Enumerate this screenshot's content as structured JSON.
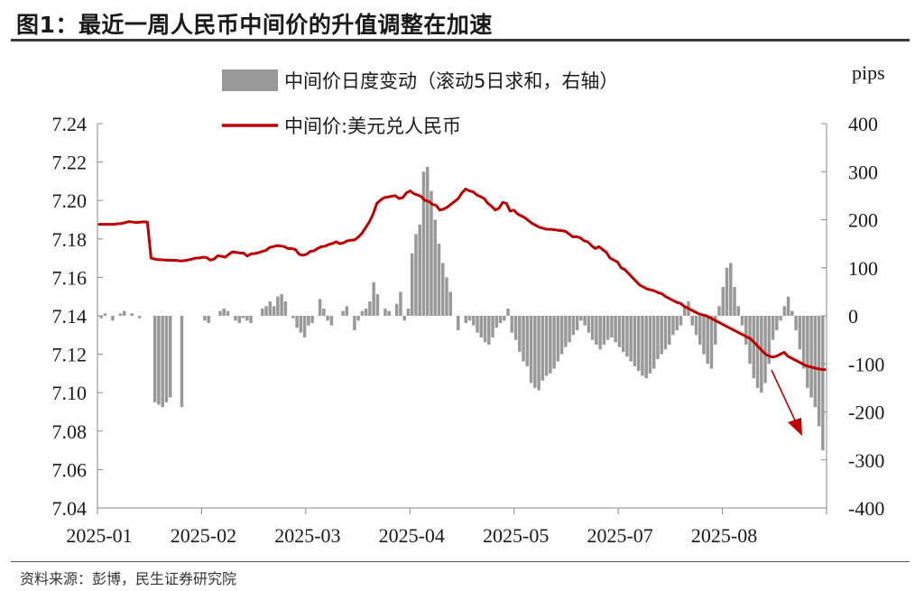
{
  "figure": {
    "title": "图1：最近一周人民币中间价的升值调整在加速",
    "source": "资料来源：彭博，民生证券研究院"
  },
  "chart_data": {
    "type": "bar+line",
    "right_axis_unit": "pips",
    "left_ylim": [
      7.04,
      7.24
    ],
    "left_yticks": [
      "7.24",
      "7.22",
      "7.20",
      "7.18",
      "7.16",
      "7.14",
      "7.12",
      "7.10",
      "7.08",
      "7.06",
      "7.04"
    ],
    "right_ylim": [
      -400,
      400
    ],
    "right_yticks": [
      "400",
      "300",
      "200",
      "100",
      "0",
      "-100",
      "-200",
      "-300",
      "-400"
    ],
    "xticks": [
      "2025-01",
      "2025-02",
      "2025-03",
      "2025-04",
      "2025-05",
      "2025-07",
      "2025-08"
    ],
    "legend_position": "top-center",
    "colors": {
      "bar": "#999999",
      "line": "#c00000",
      "arrow": "#c00000",
      "axis": "#888888"
    },
    "series": [
      {
        "name": "中间价日度变动（滚动5日求和，右轴）",
        "type": "bar",
        "axis": "right",
        "values": [
          -5,
          5,
          0,
          -10,
          0,
          5,
          10,
          0,
          5,
          0,
          -5,
          0,
          0,
          0,
          -180,
          -185,
          -190,
          -180,
          -170,
          0,
          0,
          -190,
          0,
          0,
          0,
          0,
          0,
          -10,
          -15,
          0,
          0,
          10,
          15,
          10,
          0,
          -10,
          -15,
          -5,
          -10,
          -15,
          0,
          0,
          15,
          20,
          30,
          20,
          40,
          45,
          30,
          0,
          -5,
          -25,
          -35,
          -45,
          -20,
          -15,
          0,
          35,
          15,
          -10,
          -20,
          0,
          0,
          10,
          20,
          0,
          -30,
          -10,
          10,
          15,
          30,
          70,
          45,
          0,
          15,
          10,
          0,
          25,
          50,
          -10,
          15,
          130,
          170,
          190,
          300,
          310,
          260,
          200,
          150,
          110,
          80,
          50,
          0,
          -30,
          0,
          -15,
          -10,
          -20,
          -35,
          -45,
          -55,
          -60,
          -45,
          -25,
          -15,
          -10,
          15,
          -35,
          -50,
          -75,
          -95,
          -105,
          -140,
          -150,
          -155,
          -135,
          -125,
          -120,
          -110,
          -95,
          -80,
          -65,
          -55,
          -40,
          -30,
          -10,
          -20,
          -35,
          -50,
          -60,
          -70,
          -60,
          -50,
          -45,
          -55,
          -65,
          -75,
          -85,
          -95,
          -105,
          -115,
          -125,
          -130,
          -120,
          -110,
          -90,
          -80,
          -70,
          -60,
          -40,
          -30,
          -20,
          20,
          30,
          -20,
          -40,
          -60,
          -80,
          -100,
          -110,
          -60,
          20,
          60,
          100,
          110,
          60,
          20,
          -20,
          -60,
          -100,
          -130,
          -150,
          -160,
          -140,
          -100,
          -50,
          -30,
          -10,
          20,
          40,
          10,
          -30,
          -70,
          -110,
          -150,
          -170,
          -190,
          -230,
          -280
        ]
      },
      {
        "name": "中间价:美元兑人民币",
        "type": "line",
        "axis": "left",
        "values": [
          7.1876,
          7.1876,
          7.1876,
          7.1876,
          7.1876,
          7.1879,
          7.188,
          7.1885,
          7.189,
          7.1888,
          7.1885,
          7.1887,
          7.1889,
          7.1888,
          7.17,
          7.1695,
          7.1692,
          7.1691,
          7.169,
          7.1689,
          7.1689,
          7.1688,
          7.1685,
          7.1687,
          7.169,
          7.1695,
          7.17,
          7.1701,
          7.1705,
          7.1703,
          7.169,
          7.1695,
          7.1712,
          7.171,
          7.1705,
          7.172,
          7.1733,
          7.173,
          7.1727,
          7.1726,
          7.1711,
          7.1722,
          7.1724,
          7.1728,
          7.1735,
          7.174,
          7.1755,
          7.176,
          7.1765,
          7.1763,
          7.176,
          7.175,
          7.175,
          7.1745,
          7.172,
          7.1715,
          7.172,
          7.1735,
          7.1738,
          7.175,
          7.176,
          7.1762,
          7.1771,
          7.1776,
          7.1785,
          7.1775,
          7.178,
          7.179,
          7.1793,
          7.1795,
          7.181,
          7.183,
          7.186,
          7.189,
          7.193,
          7.1985,
          7.2002,
          7.2015,
          7.2018,
          7.2022,
          7.2025,
          7.201,
          7.2015,
          7.204,
          7.205,
          7.2035,
          7.2029,
          7.202,
          7.2,
          7.1996,
          7.198,
          7.1975,
          7.195,
          7.1955,
          7.1965,
          7.198,
          7.1995,
          7.201,
          7.204,
          7.206,
          7.205,
          7.2045,
          7.2029,
          7.202,
          7.201,
          7.1985,
          7.197,
          7.195,
          7.196,
          7.199,
          7.1985,
          7.1945,
          7.195,
          7.193,
          7.192,
          7.191,
          7.1895,
          7.188,
          7.187,
          7.186,
          7.1855,
          7.185,
          7.185,
          7.1848,
          7.1845,
          7.1843,
          7.1839,
          7.1825,
          7.181,
          7.1812,
          7.1805,
          7.179,
          7.1785,
          7.1765,
          7.175,
          7.176,
          7.1745,
          7.173,
          7.17,
          7.169,
          7.168,
          7.165,
          7.164,
          7.162,
          7.16,
          7.158,
          7.156,
          7.155,
          7.154,
          7.1535,
          7.153,
          7.152,
          7.1515,
          7.15,
          7.149,
          7.148,
          7.147,
          7.1465,
          7.145,
          7.144,
          7.143,
          7.142,
          7.141,
          7.1405,
          7.14,
          7.139,
          7.138,
          7.137,
          7.136,
          7.135,
          7.134,
          7.133,
          7.132,
          7.131,
          7.13,
          7.129,
          7.128,
          7.126,
          7.124,
          7.122,
          7.12,
          7.119,
          7.1185,
          7.119,
          7.12,
          7.121,
          7.119,
          7.118,
          7.117,
          7.116,
          7.115,
          7.114,
          7.1135,
          7.113,
          7.1125,
          7.1122,
          7.112
        ]
      }
    ]
  }
}
